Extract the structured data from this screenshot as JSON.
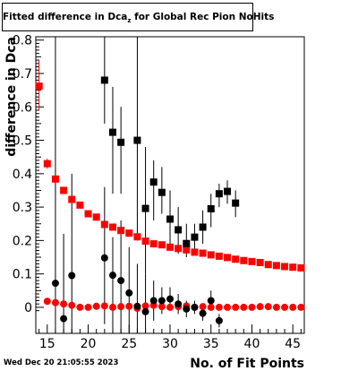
{
  "chart_data": {
    "type": "scatter",
    "title": {
      "text": "Fitted difference in Dca",
      "subscript": "z",
      "suffix": " for Global Rec Pion NoHits"
    },
    "xlabel": "No. of Fit Points",
    "ylabel": "difference in Dca",
    "xlim": [
      13.6,
      46.4
    ],
    "ylim": [
      -0.078,
      0.81
    ],
    "xticks": [
      15,
      20,
      25,
      30,
      35,
      40,
      45
    ],
    "yticks": [
      0,
      0.1,
      0.2,
      0.3,
      0.4,
      0.5,
      0.6,
      0.7,
      0.8
    ],
    "ytick_labels": [
      "0",
      "0.1",
      "0.2",
      "0.3",
      "0.4",
      "0.5",
      "0.6",
      "0.7",
      "0.8"
    ],
    "series": [
      {
        "marker": "square",
        "color": "#ff0000",
        "points": [
          {
            "x": 14,
            "y": 0.662,
            "lo": 0.59,
            "hi": 0.74
          },
          {
            "x": 15,
            "y": 0.43,
            "lo": 0.415,
            "hi": 0.445
          },
          {
            "x": 16,
            "y": 0.384,
            "lo": 0.372,
            "hi": 0.396
          },
          {
            "x": 17,
            "y": 0.35,
            "lo": 0.34,
            "hi": 0.36
          },
          {
            "x": 18,
            "y": 0.323,
            "lo": 0.315,
            "hi": 0.331
          },
          {
            "x": 19,
            "y": 0.306
          },
          {
            "x": 20,
            "y": 0.28
          },
          {
            "x": 21,
            "y": 0.27
          },
          {
            "x": 22,
            "y": 0.248
          },
          {
            "x": 23,
            "y": 0.24
          },
          {
            "x": 24,
            "y": 0.23
          },
          {
            "x": 25,
            "y": 0.222
          },
          {
            "x": 26,
            "y": 0.211
          },
          {
            "x": 27,
            "y": 0.198
          },
          {
            "x": 28,
            "y": 0.19
          },
          {
            "x": 29,
            "y": 0.187
          },
          {
            "x": 30,
            "y": 0.18
          },
          {
            "x": 31,
            "y": 0.176
          },
          {
            "x": 32,
            "y": 0.172
          },
          {
            "x": 33,
            "y": 0.165
          },
          {
            "x": 34,
            "y": 0.162
          },
          {
            "x": 35,
            "y": 0.157
          },
          {
            "x": 36,
            "y": 0.153
          },
          {
            "x": 37,
            "y": 0.149
          },
          {
            "x": 38,
            "y": 0.144
          },
          {
            "x": 39,
            "y": 0.14
          },
          {
            "x": 40,
            "y": 0.137
          },
          {
            "x": 41,
            "y": 0.134
          },
          {
            "x": 42,
            "y": 0.128
          },
          {
            "x": 43,
            "y": 0.125
          },
          {
            "x": 44,
            "y": 0.122
          },
          {
            "x": 45,
            "y": 0.12
          },
          {
            "x": 46,
            "y": 0.118
          }
        ]
      },
      {
        "marker": "circle",
        "color": "#ff0000",
        "points": [
          {
            "x": 15,
            "y": 0.018
          },
          {
            "x": 16,
            "y": 0.014
          },
          {
            "x": 17,
            "y": 0.01
          },
          {
            "x": 18,
            "y": 0.006
          },
          {
            "x": 19,
            "y": 0.0
          },
          {
            "x": 20,
            "y": 0.0
          },
          {
            "x": 21,
            "y": 0.003
          },
          {
            "x": 22,
            "y": 0.004
          },
          {
            "x": 23,
            "y": 0.0
          },
          {
            "x": 24,
            "y": 0.002
          },
          {
            "x": 25,
            "y": 0.003
          },
          {
            "x": 26,
            "y": -0.003
          },
          {
            "x": 27,
            "y": 0.004
          },
          {
            "x": 28,
            "y": 0.006
          },
          {
            "x": 29,
            "y": 0.002
          },
          {
            "x": 30,
            "y": 0.0
          },
          {
            "x": 31,
            "y": 0.002
          },
          {
            "x": 32,
            "y": 0.004
          },
          {
            "x": 33,
            "y": 0.0
          },
          {
            "x": 34,
            "y": 0.002
          },
          {
            "x": 35,
            "y": 0.0
          },
          {
            "x": 36,
            "y": 0.0
          },
          {
            "x": 37,
            "y": 0.0
          },
          {
            "x": 38,
            "y": 0.0
          },
          {
            "x": 39,
            "y": 0.0
          },
          {
            "x": 40,
            "y": 0.0
          },
          {
            "x": 41,
            "y": 0.002
          },
          {
            "x": 42,
            "y": 0.002
          },
          {
            "x": 43,
            "y": 0.0
          },
          {
            "x": 44,
            "y": 0.0
          },
          {
            "x": 45,
            "y": 0.0
          },
          {
            "x": 46,
            "y": 0.0
          }
        ]
      },
      {
        "marker": "square",
        "color": "#000000",
        "points": [
          {
            "x": 22,
            "y": 0.68,
            "lo": 0.55,
            "hi": 0.81
          },
          {
            "x": 23,
            "y": 0.524,
            "lo": 0.34,
            "hi": 0.66
          },
          {
            "x": 24,
            "y": 0.494,
            "lo": 0.34,
            "hi": 0.6
          },
          {
            "x": 26,
            "y": 0.5,
            "lo": 0.2,
            "hi": 0.81
          },
          {
            "x": 27,
            "y": 0.296,
            "lo": 0.1,
            "hi": 0.48
          },
          {
            "x": 28,
            "y": 0.375,
            "lo": 0.26,
            "hi": 0.44
          },
          {
            "x": 29,
            "y": 0.344,
            "lo": 0.28,
            "hi": 0.42
          },
          {
            "x": 30,
            "y": 0.264,
            "lo": 0.19,
            "hi": 0.35
          },
          {
            "x": 31,
            "y": 0.232,
            "lo": 0.16,
            "hi": 0.3
          },
          {
            "x": 32,
            "y": 0.191,
            "lo": 0.15,
            "hi": 0.25
          },
          {
            "x": 33,
            "y": 0.21,
            "lo": 0.17,
            "hi": 0.25
          },
          {
            "x": 34,
            "y": 0.24,
            "lo": 0.19,
            "hi": 0.29
          },
          {
            "x": 35,
            "y": 0.295,
            "lo": 0.24,
            "hi": 0.34
          },
          {
            "x": 36,
            "y": 0.34,
            "lo": 0.3,
            "hi": 0.37
          },
          {
            "x": 37,
            "y": 0.347,
            "lo": 0.31,
            "hi": 0.38
          },
          {
            "x": 38,
            "y": 0.312,
            "lo": 0.27,
            "hi": 0.35
          }
        ]
      },
      {
        "marker": "circle",
        "color": "#000000",
        "points": [
          {
            "x": 16,
            "y": 0.072,
            "lo": -0.078,
            "hi": 0.81
          },
          {
            "x": 17,
            "y": -0.034,
            "lo": -0.078,
            "hi": 0.22
          },
          {
            "x": 18,
            "y": 0.095,
            "lo": -0.078,
            "hi": 0.4
          },
          {
            "x": 22,
            "y": 0.148,
            "lo": -0.05,
            "hi": 0.36
          },
          {
            "x": 23,
            "y": 0.096,
            "lo": -0.078,
            "hi": 0.21
          },
          {
            "x": 24,
            "y": 0.08,
            "lo": -0.078,
            "hi": 0.26
          },
          {
            "x": 25,
            "y": 0.043,
            "lo": -0.078,
            "hi": 0.18
          },
          {
            "x": 26,
            "y": 0.003,
            "lo": -0.078,
            "hi": 0.13
          },
          {
            "x": 27,
            "y": -0.013,
            "lo": -0.078,
            "hi": 0.1
          },
          {
            "x": 28,
            "y": 0.02,
            "lo": -0.04,
            "hi": 0.08
          },
          {
            "x": 29,
            "y": 0.02,
            "lo": -0.02,
            "hi": 0.06
          },
          {
            "x": 30,
            "y": 0.025,
            "lo": -0.01,
            "hi": 0.06
          },
          {
            "x": 31,
            "y": 0.01,
            "lo": -0.02,
            "hi": 0.04
          },
          {
            "x": 32,
            "y": -0.005,
            "lo": -0.03,
            "hi": 0.02
          },
          {
            "x": 33,
            "y": 0.0,
            "lo": -0.02,
            "hi": 0.02
          },
          {
            "x": 34,
            "y": -0.018,
            "lo": -0.04,
            "hi": 0.0
          },
          {
            "x": 35,
            "y": 0.02,
            "lo": -0.01,
            "hi": 0.05
          },
          {
            "x": 36,
            "y": -0.04,
            "lo": -0.06,
            "hi": -0.02
          }
        ]
      }
    ]
  },
  "timestamp": "Wed Dec 20 21:05:55 2023"
}
